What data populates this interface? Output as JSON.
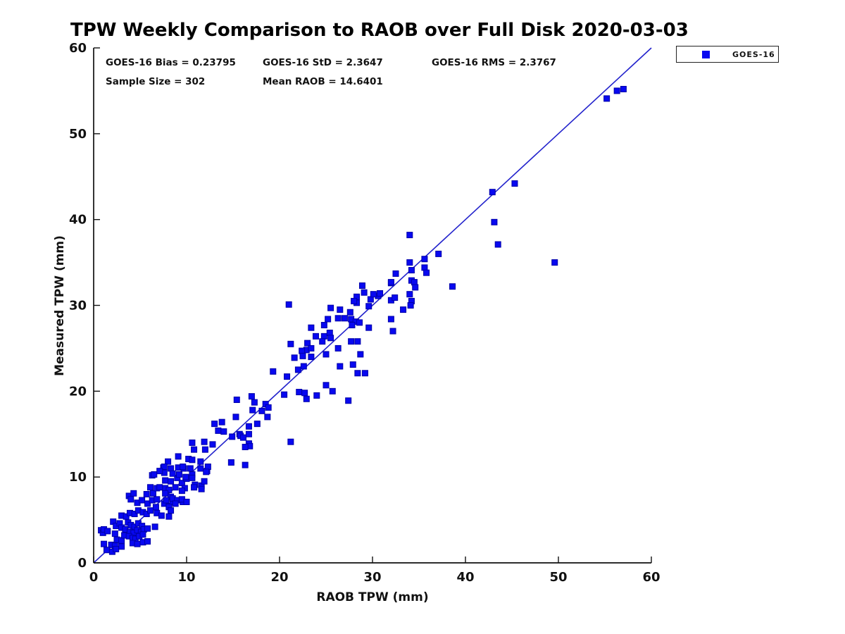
{
  "title": "TPW Weekly Comparison to RAOB over Full Disk 2020-03-03",
  "stats": {
    "bias": "GOES-16 Bias = 0.23795",
    "std": "GOES-16 StD = 2.3647",
    "rms": "GOES-16 RMS = 2.3767",
    "sample_size": "Sample Size = 302",
    "mean_raob": "Mean RAOB = 14.6401"
  },
  "legend": {
    "label": "GOES-16"
  },
  "colors": {
    "marker_fill": "#0808f0",
    "marker_edge": "#0000a8",
    "line": "#2222cc",
    "axis": "#111111",
    "text": "#111111"
  },
  "chart_data": {
    "type": "scatter",
    "title": "TPW Weekly Comparison to RAOB over Full Disk 2020-03-03",
    "xlabel": "RAOB TPW (mm)",
    "ylabel": "Measured TPW (mm)",
    "xlim": [
      0,
      60
    ],
    "ylim": [
      0,
      60
    ],
    "xticks": [
      0,
      10,
      20,
      30,
      40,
      50,
      60
    ],
    "yticks": [
      0,
      10,
      20,
      30,
      40,
      50,
      60
    ],
    "grid": false,
    "legend_position": "outside-top-right",
    "identity_line": {
      "from": [
        0,
        0
      ],
      "to": [
        60,
        60
      ]
    },
    "series": [
      {
        "name": "GOES-16",
        "marker": "square",
        "points": [
          [
            0.8,
            3.8
          ],
          [
            1.0,
            3.5
          ],
          [
            1.1,
            3.9
          ],
          [
            1.5,
            3.7
          ],
          [
            1.1,
            2.2
          ],
          [
            1.9,
            2.1
          ],
          [
            2.3,
            2.0
          ],
          [
            1.4,
            1.5
          ],
          [
            2.0,
            1.3
          ],
          [
            2.4,
            1.6
          ],
          [
            2.1,
            4.8
          ],
          [
            2.4,
            4.3
          ],
          [
            2.8,
            4.6
          ],
          [
            3.0,
            4.1
          ],
          [
            3.4,
            3.9
          ],
          [
            2.5,
            2.7
          ],
          [
            3.0,
            2.6
          ],
          [
            2.3,
            3.4
          ],
          [
            3.0,
            1.9
          ],
          [
            3.0,
            5.5
          ],
          [
            3.5,
            5.4
          ],
          [
            3.9,
            5.8
          ],
          [
            4.4,
            5.7
          ],
          [
            4.8,
            6.1
          ],
          [
            5.3,
            5.9
          ],
          [
            5.7,
            5.7
          ],
          [
            6.1,
            6.1
          ],
          [
            6.7,
            6.5
          ],
          [
            3.7,
            4.7
          ],
          [
            4.0,
            4.4
          ],
          [
            4.4,
            4.2
          ],
          [
            4.8,
            4.6
          ],
          [
            5.2,
            4.3
          ],
          [
            3.9,
            3.6
          ],
          [
            4.3,
            3.5
          ],
          [
            4.7,
            3.8
          ],
          [
            5.1,
            3.6
          ],
          [
            5.4,
            3.9
          ],
          [
            5.8,
            4.0
          ],
          [
            6.6,
            4.2
          ],
          [
            3.3,
            3.2
          ],
          [
            3.8,
            3.1
          ],
          [
            4.2,
            2.9
          ],
          [
            4.5,
            2.8
          ],
          [
            4.9,
            3.1
          ],
          [
            5.3,
            3.3
          ],
          [
            4.2,
            2.3
          ],
          [
            4.7,
            2.2
          ],
          [
            5.3,
            2.4
          ],
          [
            5.8,
            2.5
          ],
          [
            3.8,
            7.8
          ],
          [
            4.3,
            8.1
          ],
          [
            4.0,
            7.4
          ],
          [
            4.7,
            7.0
          ],
          [
            5.2,
            7.3
          ],
          [
            5.8,
            6.9
          ],
          [
            6.3,
            7.3
          ],
          [
            6.8,
            7.4
          ],
          [
            5.7,
            8.0
          ],
          [
            6.4,
            8.1
          ],
          [
            6.1,
            8.8
          ],
          [
            6.8,
            8.7
          ],
          [
            6.3,
            10.2
          ],
          [
            6.8,
            5.8
          ],
          [
            7.3,
            5.5
          ],
          [
            7.6,
            6.9
          ],
          [
            8.1,
            6.6
          ],
          [
            7.5,
            11.1
          ],
          [
            8.3,
            11.0
          ],
          [
            9.1,
            11.1
          ],
          [
            9.7,
            11.0
          ],
          [
            10.6,
            10.3
          ],
          [
            11.5,
            11.0
          ],
          [
            12.2,
            10.7
          ],
          [
            7.6,
            10.5
          ],
          [
            7.7,
            9.6
          ],
          [
            8.3,
            9.5
          ],
          [
            9.0,
            9.9
          ],
          [
            9.5,
            9.3
          ],
          [
            10.0,
            9.8
          ],
          [
            10.9,
            9.1
          ],
          [
            11.6,
            9.0
          ],
          [
            8.8,
            8.8
          ],
          [
            9.8,
            8.7
          ],
          [
            7.7,
            8.7
          ],
          [
            7.1,
            8.8
          ],
          [
            10.8,
            8.8
          ],
          [
            11.6,
            8.6
          ],
          [
            9.5,
            8.4
          ],
          [
            8.1,
            8.5
          ],
          [
            7.7,
            8.1
          ],
          [
            8.3,
            7.7
          ],
          [
            7.8,
            7.3
          ],
          [
            8.5,
            7.1
          ],
          [
            8.1,
            6.5
          ],
          [
            8.3,
            6.1
          ],
          [
            8.1,
            5.4
          ],
          [
            9.6,
            7.1
          ],
          [
            8.5,
            7.5
          ],
          [
            9.0,
            7.3
          ],
          [
            9.5,
            7.4
          ],
          [
            10.0,
            7.1
          ],
          [
            8.8,
            6.9
          ],
          [
            12.3,
            11.2
          ],
          [
            12.1,
            10.6
          ],
          [
            10.6,
            14.0
          ],
          [
            10.8,
            13.2
          ],
          [
            11.9,
            14.1
          ],
          [
            12.0,
            13.2
          ],
          [
            12.8,
            13.8
          ],
          [
            9.1,
            12.4
          ],
          [
            10.2,
            12.1
          ],
          [
            10.6,
            12.0
          ],
          [
            8.0,
            11.8
          ],
          [
            7.6,
            11.2
          ],
          [
            9.6,
            11.2
          ],
          [
            10.4,
            11.0
          ],
          [
            11.5,
            11.8
          ],
          [
            8.5,
            10.4
          ],
          [
            9.2,
            10.3
          ],
          [
            9.9,
            10.0
          ],
          [
            10.6,
            9.9
          ],
          [
            6.5,
            10.3
          ],
          [
            7.1,
            10.7
          ],
          [
            11.9,
            9.5
          ],
          [
            14.8,
            11.7
          ],
          [
            16.3,
            11.4
          ],
          [
            13.0,
            16.2
          ],
          [
            13.8,
            16.4
          ],
          [
            13.4,
            15.4
          ],
          [
            14.0,
            15.3
          ],
          [
            15.3,
            17.0
          ],
          [
            15.4,
            19.0
          ],
          [
            16.7,
            15.9
          ],
          [
            17.6,
            16.2
          ],
          [
            15.7,
            15.0
          ],
          [
            14.9,
            14.7
          ],
          [
            15.8,
            14.8
          ],
          [
            16.1,
            14.6
          ],
          [
            16.7,
            15.0
          ],
          [
            16.7,
            13.9
          ],
          [
            16.8,
            13.6
          ],
          [
            16.3,
            13.5
          ],
          [
            17.0,
            19.4
          ],
          [
            17.3,
            18.7
          ],
          [
            18.5,
            18.5
          ],
          [
            18.8,
            18.1
          ],
          [
            17.1,
            17.8
          ],
          [
            18.1,
            17.7
          ],
          [
            18.7,
            17.0
          ],
          [
            19.3,
            22.3
          ],
          [
            20.8,
            21.7
          ],
          [
            22.0,
            22.5
          ],
          [
            22.6,
            22.9
          ],
          [
            20.5,
            19.6
          ],
          [
            22.1,
            19.9
          ],
          [
            22.7,
            19.8
          ],
          [
            24.0,
            19.5
          ],
          [
            22.9,
            19.1
          ],
          [
            21.2,
            14.1
          ],
          [
            27.4,
            18.9
          ],
          [
            25.0,
            20.7
          ],
          [
            25.7,
            20.0
          ],
          [
            21.0,
            30.1
          ],
          [
            25.5,
            29.7
          ],
          [
            26.5,
            29.5
          ],
          [
            27.6,
            29.2
          ],
          [
            25.2,
            28.4
          ],
          [
            26.3,
            28.5
          ],
          [
            27.0,
            28.5
          ],
          [
            27.7,
            28.4
          ],
          [
            28.2,
            28.1
          ],
          [
            28.6,
            28.0
          ],
          [
            27.8,
            27.7
          ],
          [
            24.8,
            27.7
          ],
          [
            23.4,
            27.4
          ],
          [
            29.6,
            27.4
          ],
          [
            23.9,
            26.4
          ],
          [
            24.8,
            26.4
          ],
          [
            25.4,
            26.8
          ],
          [
            25.5,
            26.2
          ],
          [
            24.6,
            25.8
          ],
          [
            23.0,
            25.6
          ],
          [
            27.7,
            25.8
          ],
          [
            28.4,
            25.8
          ],
          [
            21.2,
            25.5
          ],
          [
            22.9,
            24.8
          ],
          [
            23.4,
            25.0
          ],
          [
            22.4,
            24.7
          ],
          [
            26.3,
            25.0
          ],
          [
            21.6,
            23.9
          ],
          [
            22.5,
            24.1
          ],
          [
            23.4,
            24.0
          ],
          [
            25.0,
            24.3
          ],
          [
            28.7,
            24.3
          ],
          [
            26.5,
            22.9
          ],
          [
            27.9,
            23.1
          ],
          [
            28.4,
            22.1
          ],
          [
            29.2,
            22.1
          ],
          [
            28.9,
            32.3
          ],
          [
            29.1,
            31.5
          ],
          [
            28.3,
            31.0
          ],
          [
            28.3,
            30.3
          ],
          [
            30.6,
            31.1
          ],
          [
            29.8,
            30.7
          ],
          [
            29.6,
            29.9
          ],
          [
            32.0,
            30.6
          ],
          [
            33.3,
            29.5
          ],
          [
            32.0,
            32.6
          ],
          [
            32.0,
            28.4
          ],
          [
            32.2,
            27.0
          ],
          [
            32.4,
            30.9
          ],
          [
            30.1,
            31.3
          ],
          [
            30.8,
            31.4
          ],
          [
            28.0,
            30.5
          ],
          [
            34.0,
            38.2
          ],
          [
            37.1,
            36.0
          ],
          [
            35.6,
            35.4
          ],
          [
            34.0,
            35.0
          ],
          [
            35.6,
            34.4
          ],
          [
            35.8,
            33.8
          ],
          [
            34.2,
            34.1
          ],
          [
            32.5,
            33.7
          ],
          [
            32.0,
            32.7
          ],
          [
            34.2,
            32.9
          ],
          [
            34.5,
            32.7
          ],
          [
            34.6,
            32.1
          ],
          [
            38.6,
            32.2
          ],
          [
            34.0,
            31.3
          ],
          [
            34.2,
            30.5
          ],
          [
            34.1,
            30.0
          ],
          [
            43.1,
            39.7
          ],
          [
            43.5,
            37.1
          ],
          [
            45.3,
            44.2
          ],
          [
            42.9,
            43.2
          ],
          [
            49.6,
            35.0
          ],
          [
            55.2,
            54.1
          ],
          [
            56.3,
            55.0
          ],
          [
            57.0,
            55.2
          ]
        ]
      }
    ]
  }
}
